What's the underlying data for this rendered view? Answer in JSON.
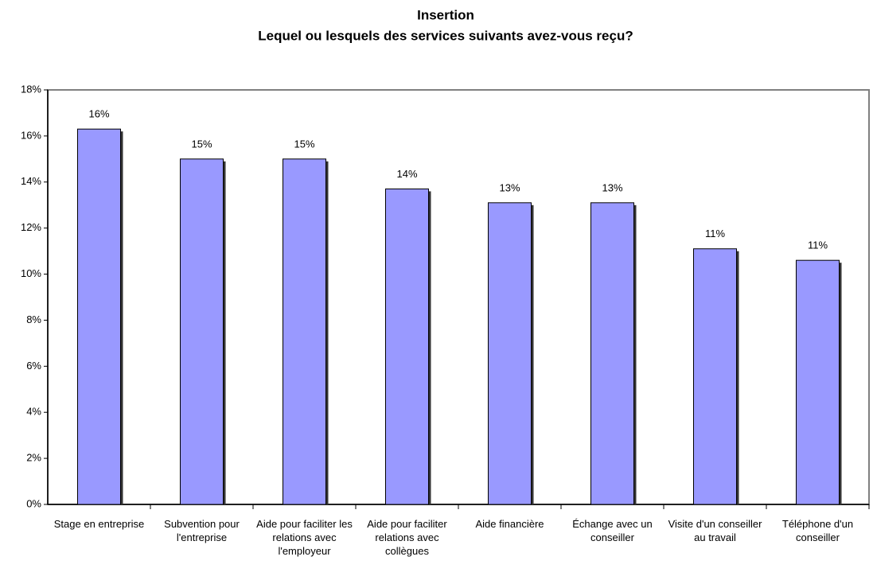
{
  "chart_data": {
    "type": "bar",
    "title": "Insertion",
    "subtitle": "Lequel ou lesquels des services suivants avez-vous reçu?",
    "categories": [
      "Stage en entreprise",
      "Subvention pour l'entreprise",
      "Aide pour faciliter les relations avec l'employeur",
      "Aide pour faciliter relations avec collègues",
      "Aide financière",
      "Échange avec un conseiller",
      "Visite d'un conseiller au travail",
      "Téléphone d'un conseiller"
    ],
    "values": [
      16.3,
      15.0,
      15.0,
      13.7,
      13.1,
      13.1,
      11.1,
      10.6
    ],
    "value_labels": [
      "16%",
      "15%",
      "15%",
      "14%",
      "13%",
      "13%",
      "11%",
      "11%"
    ],
    "color": "#9999ff",
    "ylim": [
      0,
      18
    ],
    "yticks": [
      {
        "value": 0,
        "label": "0%"
      },
      {
        "value": 2,
        "label": "2%"
      },
      {
        "value": 4,
        "label": "4%"
      },
      {
        "value": 6,
        "label": "6%"
      },
      {
        "value": 8,
        "label": "8%"
      },
      {
        "value": 10,
        "label": "10%"
      },
      {
        "value": 12,
        "label": "12%"
      },
      {
        "value": 14,
        "label": "14%"
      },
      {
        "value": 16,
        "label": "16%"
      },
      {
        "value": 18,
        "label": "18%"
      }
    ],
    "grid": false
  }
}
